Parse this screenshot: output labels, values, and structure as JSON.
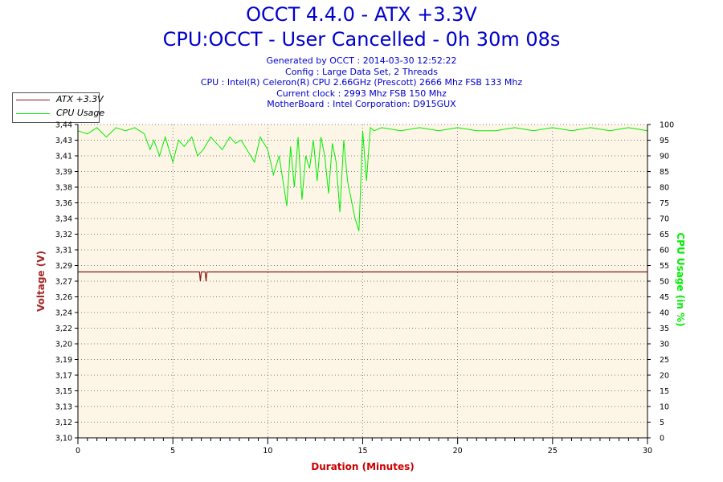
{
  "header": {
    "title": "OCCT 4.4.0 - ATX +3.3V",
    "subtitle": "CPU:OCCT - User Cancelled - 0h 30m 08s",
    "info": [
      "Generated by OCCT : 2014-03-30 12:52:22",
      "Config : Large Data Set, 2 Threads",
      "CPU : Intel(R) Celeron(R) CPU 2.66GHz (Prescott) 2666 Mhz FSB 133 Mhz",
      "Current clock : 2993 Mhz FSB 150 Mhz",
      "MotherBoard : Intel Corporation: D915GUX"
    ]
  },
  "legend": {
    "items": [
      {
        "label": "ATX +3.3V",
        "color": "#8b1a1a"
      },
      {
        "label": "CPU Usage",
        "color": "#00ee00"
      }
    ]
  },
  "colors": {
    "plot_background": "#fdf5e6",
    "voltage": "#8b1a1a",
    "cpu": "#00ee00",
    "title": "#0000cc",
    "axis_label_left": "#a52a2a",
    "axis_label_right": "#00ee00",
    "axis_label_bottom": "#cc0000"
  },
  "chart_data": {
    "type": "line",
    "xlabel": "Duration (Minutes)",
    "ylabel": "Voltage (V)",
    "y2label": "CPU Usage (in %)",
    "xlim": [
      0,
      30
    ],
    "ylim": [
      3.1,
      3.44
    ],
    "y2lim": [
      0,
      100
    ],
    "grid": true,
    "legend_position": "top-left",
    "x_ticks": [
      "0",
      "5",
      "10",
      "15",
      "20",
      "25",
      "30"
    ],
    "y_ticks": [
      "3,10",
      "3,12",
      "3,13",
      "3,15",
      "3,17",
      "3,19",
      "3,20",
      "3,22",
      "3,24",
      "3,26",
      "3,27",
      "3,29",
      "3,31",
      "3,32",
      "3,34",
      "3,36",
      "3,38",
      "3,39",
      "3,41",
      "3,43",
      "3,44"
    ],
    "y2_ticks": [
      "0",
      "5",
      "10",
      "15",
      "20",
      "25",
      "30",
      "35",
      "40",
      "45",
      "50",
      "55",
      "60",
      "65",
      "70",
      "75",
      "80",
      "85",
      "90",
      "95",
      "100"
    ],
    "series": [
      {
        "name": "ATX +3.3V",
        "axis": "left",
        "x": [
          0,
          6.4,
          6.45,
          6.5,
          6.7,
          6.75,
          6.8,
          6.9,
          30
        ],
        "y": [
          3.28,
          3.28,
          3.27,
          3.28,
          3.28,
          3.27,
          3.28,
          3.28,
          3.28
        ]
      },
      {
        "name": "CPU Usage",
        "axis": "right",
        "x": [
          0,
          0.5,
          1.0,
          1.5,
          2.0,
          2.5,
          3.0,
          3.5,
          3.8,
          4.0,
          4.3,
          4.6,
          5.0,
          5.3,
          5.6,
          6.0,
          6.3,
          6.6,
          7.0,
          7.3,
          7.6,
          8.0,
          8.3,
          8.6,
          9.0,
          9.3,
          9.6,
          10.0,
          10.3,
          10.6,
          11.0,
          11.2,
          11.4,
          11.6,
          11.8,
          12.0,
          12.2,
          12.4,
          12.6,
          12.8,
          13.0,
          13.2,
          13.4,
          13.6,
          13.8,
          14.0,
          14.2,
          14.4,
          14.6,
          14.8,
          15.0,
          15.2,
          15.4,
          15.6,
          16,
          17,
          18,
          19,
          20,
          21,
          22,
          23,
          24,
          25,
          26,
          27,
          28,
          29,
          30
        ],
        "y": [
          98,
          97,
          99,
          96,
          99,
          98,
          99,
          97,
          92,
          95,
          90,
          96,
          88,
          95,
          93,
          96,
          90,
          92,
          96,
          94,
          92,
          96,
          94,
          95,
          91,
          88,
          96,
          92,
          84,
          90,
          74,
          93,
          80,
          96,
          76,
          90,
          86,
          95,
          82,
          96,
          90,
          78,
          94,
          88,
          72,
          95,
          82,
          76,
          70,
          66,
          98,
          82,
          99,
          98,
          99,
          98,
          99,
          98,
          99,
          98,
          98,
          99,
          98,
          99,
          98,
          99,
          98,
          99,
          98
        ]
      }
    ]
  }
}
